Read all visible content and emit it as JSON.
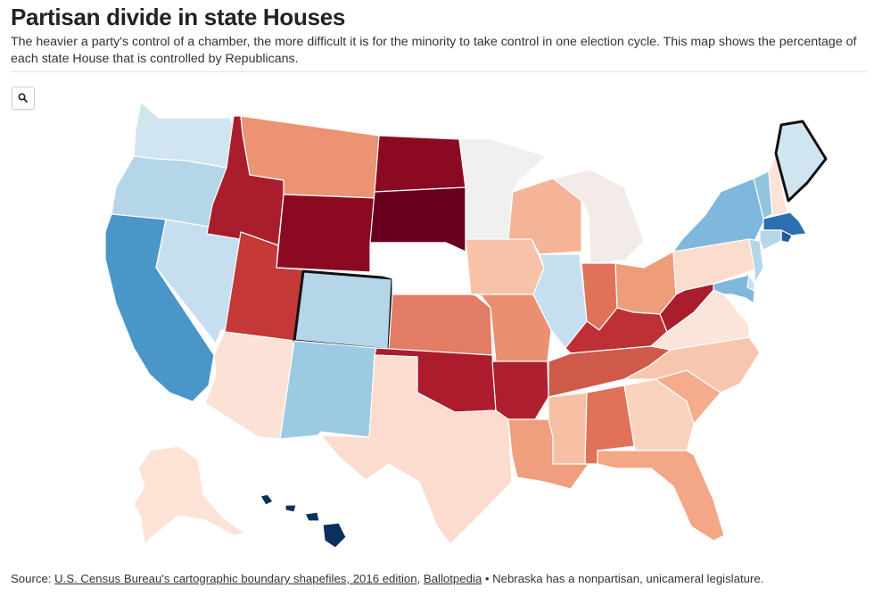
{
  "header": {
    "title": "Partisan divide in state Houses",
    "subtitle": "The heavier a party's control of a chamber, the more difficult it is for the minority to take control in one election cycle. This map shows the percentage of each state House that is controlled by Republicans."
  },
  "controls": {
    "zoom_icon": "search-icon"
  },
  "footer": {
    "source_label": "Source: ",
    "link_census": "U.S. Census Bureau's cartographic boundary shapefiles, 2016 edition",
    "separator": ", ",
    "link_ballotpedia": "Ballotpedia",
    "note": " • Nebraska has a nonpartisan, unicameral legislature."
  },
  "legend_colors": {
    "strong_republican": "#67001f",
    "republican": "#b2182b",
    "lean_republican": "#d6604d",
    "slight_republican": "#f4a582",
    "near_even_republican": "#fddbc7",
    "neutral": "#f0f0f0",
    "near_even_democrat": "#d1e5f0",
    "slight_democrat": "#92c5de",
    "lean_democrat": "#4393c3",
    "democrat": "#2166ac",
    "strong_democrat": "#053061",
    "no_data": "#ffffff"
  },
  "states": [
    {
      "id": "WA",
      "fill": "#d1e5f0"
    },
    {
      "id": "OR",
      "fill": "#b4d6e8"
    },
    {
      "id": "CA",
      "fill": "#4a96c8"
    },
    {
      "id": "NV",
      "fill": "#c6dff0"
    },
    {
      "id": "ID",
      "fill": "#a91d2c"
    },
    {
      "id": "MT",
      "fill": "#eb9373"
    },
    {
      "id": "WY",
      "fill": "#8b0a22"
    },
    {
      "id": "UT",
      "fill": "#c43838"
    },
    {
      "id": "AZ",
      "fill": "#fbe1d6"
    },
    {
      "id": "CO",
      "fill": "#b4d6e8"
    },
    {
      "id": "NM",
      "fill": "#9dcae3"
    },
    {
      "id": "ND",
      "fill": "#8b0a22"
    },
    {
      "id": "SD",
      "fill": "#67001f"
    },
    {
      "id": "NE",
      "fill": "#ffffff"
    },
    {
      "id": "KS",
      "fill": "#e37c64"
    },
    {
      "id": "OK",
      "fill": "#ad1c2d"
    },
    {
      "id": "TX",
      "fill": "#fcdcce"
    },
    {
      "id": "MN",
      "fill": "#f0f0f0"
    },
    {
      "id": "IA",
      "fill": "#f8c2a8"
    },
    {
      "id": "MO",
      "fill": "#ea9070"
    },
    {
      "id": "AR",
      "fill": "#b01f2f"
    },
    {
      "id": "LA",
      "fill": "#ef9e7e"
    },
    {
      "id": "WI",
      "fill": "#f5b497"
    },
    {
      "id": "IL",
      "fill": "#c6dff0"
    },
    {
      "id": "MI",
      "fill": "#f3ebe7"
    },
    {
      "id": "IN",
      "fill": "#df7258"
    },
    {
      "id": "OH",
      "fill": "#ef9c7b"
    },
    {
      "id": "KY",
      "fill": "#bd3035"
    },
    {
      "id": "TN",
      "fill": "#d05a4a"
    },
    {
      "id": "MS",
      "fill": "#f7c0a5"
    },
    {
      "id": "AL",
      "fill": "#df7258"
    },
    {
      "id": "GA",
      "fill": "#fad3bf"
    },
    {
      "id": "FL",
      "fill": "#f3a786"
    },
    {
      "id": "SC",
      "fill": "#f4ac8c"
    },
    {
      "id": "NC",
      "fill": "#f8c6ae"
    },
    {
      "id": "VA",
      "fill": "#fbe4da"
    },
    {
      "id": "WV",
      "fill": "#a91d2c"
    },
    {
      "id": "PA",
      "fill": "#fbdccd"
    },
    {
      "id": "NY",
      "fill": "#7fb8dc"
    },
    {
      "id": "VT",
      "fill": "#92c5de"
    },
    {
      "id": "NH",
      "fill": "#fde3d6"
    },
    {
      "id": "ME",
      "fill": "#d1e5f0"
    },
    {
      "id": "MA",
      "fill": "#2b6fb1"
    },
    {
      "id": "RI",
      "fill": "#1d5a9c"
    },
    {
      "id": "CT",
      "fill": "#b4d6e8"
    },
    {
      "id": "NJ",
      "fill": "#b4d6e8"
    },
    {
      "id": "DE",
      "fill": "#c6dff0"
    },
    {
      "id": "MD",
      "fill": "#7fb8dc"
    },
    {
      "id": "AK",
      "fill": "#fde3d6"
    },
    {
      "id": "HI",
      "fill": "#0b2f5e"
    }
  ]
}
